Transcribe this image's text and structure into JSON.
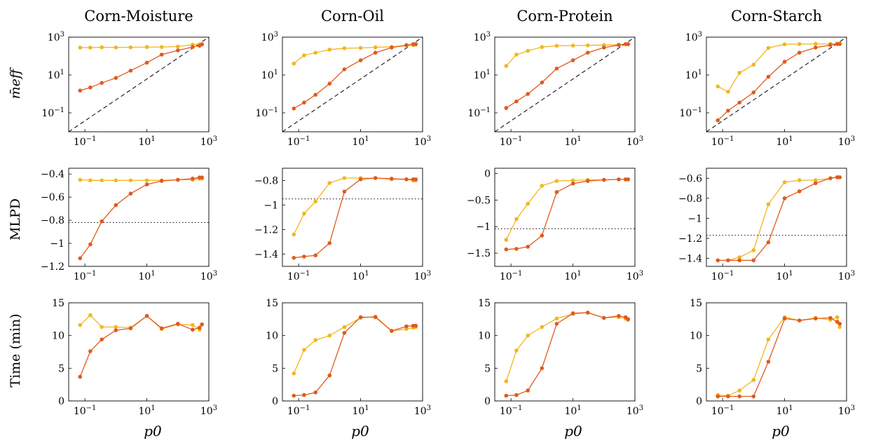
{
  "figure": {
    "columns": [
      "Corn-Moisture",
      "Corn-Oil",
      "Corn-Protein",
      "Corn-Starch"
    ],
    "row_labels": [
      "m̄eff",
      "MLPD",
      "Time (min)"
    ],
    "x_label": "p0"
  },
  "colors": {
    "series_a": "#e05a1e",
    "series_b": "#f2b61f",
    "reference": "#000000"
  },
  "chart_data": [
    {
      "type": "line",
      "panel": "Corn-Moisture / m_eff",
      "xscale": "log",
      "yscale": "log",
      "xlim": [
        0.03,
        1000
      ],
      "ylim": [
        0.01,
        1000
      ],
      "xticks": [
        0.1,
        10,
        1000
      ],
      "yticks": [
        0.1,
        10,
        1000
      ],
      "x": [
        0.07,
        0.15,
        0.35,
        1,
        3,
        10,
        30,
        100,
        300,
        500,
        600
      ],
      "series": [
        {
          "values": [
            1.5,
            2.2,
            3.8,
            7,
            17,
            45,
            120,
            200,
            300,
            350,
            420
          ]
        },
        {
          "values": [
            280,
            280,
            290,
            285,
            290,
            300,
            300,
            320,
            400,
            420,
            420
          ]
        }
      ],
      "reference": {
        "kind": "diagonal"
      }
    },
    {
      "type": "line",
      "panel": "Corn-Oil / m_eff",
      "xscale": "log",
      "yscale": "log",
      "xlim": [
        0.03,
        1000
      ],
      "ylim": [
        0.01,
        1000
      ],
      "xticks": [
        0.1,
        10,
        1000
      ],
      "yticks": [
        0.1,
        10,
        1000
      ],
      "x": [
        0.07,
        0.15,
        0.35,
        1,
        3,
        10,
        30,
        100,
        300,
        500,
        600
      ],
      "series": [
        {
          "values": [
            0.17,
            0.35,
            0.9,
            3.5,
            20,
            60,
            150,
            280,
            380,
            430,
            430
          ]
        },
        {
          "values": [
            40,
            110,
            150,
            220,
            260,
            270,
            290,
            310,
            350,
            380,
            400
          ]
        }
      ],
      "reference": {
        "kind": "diagonal"
      }
    },
    {
      "type": "line",
      "panel": "Corn-Protein / m_eff",
      "xscale": "log",
      "yscale": "log",
      "xlim": [
        0.03,
        1000
      ],
      "ylim": [
        0.01,
        1000
      ],
      "xticks": [
        0.1,
        10,
        1000
      ],
      "yticks": [
        0.1,
        10,
        1000
      ],
      "x": [
        0.07,
        0.15,
        0.35,
        1,
        3,
        10,
        30,
        100,
        300,
        500,
        600
      ],
      "series": [
        {
          "values": [
            0.18,
            0.4,
            1,
            4,
            22,
            60,
            150,
            280,
            380,
            430,
            430
          ]
        },
        {
          "values": [
            30,
            120,
            190,
            300,
            350,
            360,
            370,
            380,
            400,
            420,
            420
          ]
        }
      ],
      "reference": {
        "kind": "diagonal"
      }
    },
    {
      "type": "line",
      "panel": "Corn-Starch / m_eff",
      "xscale": "log",
      "yscale": "log",
      "xlim": [
        0.03,
        1000
      ],
      "ylim": [
        0.01,
        1000
      ],
      "xticks": [
        0.1,
        10,
        1000
      ],
      "yticks": [
        0.1,
        10,
        1000
      ],
      "x": [
        0.07,
        0.15,
        0.35,
        1,
        3,
        10,
        30,
        100,
        300,
        500,
        600
      ],
      "series": [
        {
          "values": [
            0.04,
            0.13,
            0.35,
            1.2,
            8,
            50,
            150,
            280,
            380,
            430,
            430
          ]
        },
        {
          "values": [
            2.5,
            1.3,
            13,
            35,
            270,
            420,
            430,
            440,
            440,
            460,
            460
          ]
        }
      ],
      "reference": {
        "kind": "diagonal"
      }
    },
    {
      "type": "line",
      "panel": "Corn-Moisture / MLPD",
      "xscale": "log",
      "yscale": "linear",
      "xlim": [
        0.03,
        1000
      ],
      "ylim": [
        -1.2,
        -0.35
      ],
      "xticks": [
        0.1,
        10,
        1000
      ],
      "yticks": [
        -1.2,
        -1,
        -0.8,
        -0.6,
        -0.4
      ],
      "x": [
        0.07,
        0.15,
        0.35,
        1,
        3,
        10,
        30,
        100,
        300,
        500,
        600
      ],
      "series": [
        {
          "values": [
            -1.13,
            -1.01,
            -0.81,
            -0.67,
            -0.57,
            -0.49,
            -0.46,
            -0.45,
            -0.44,
            -0.43,
            -0.43
          ]
        },
        {
          "values": [
            -0.45,
            -0.455,
            -0.455,
            -0.455,
            -0.455,
            -0.455,
            -0.455,
            -0.45,
            -0.45,
            -0.44,
            -0.44
          ]
        }
      ],
      "reference": {
        "kind": "hline",
        "value": -0.82
      }
    },
    {
      "type": "line",
      "panel": "Corn-Oil / MLPD",
      "xscale": "log",
      "yscale": "linear",
      "xlim": [
        0.03,
        1000
      ],
      "ylim": [
        -1.5,
        -0.7
      ],
      "xticks": [
        0.1,
        10,
        1000
      ],
      "yticks": [
        -1.4,
        -1.2,
        -1,
        -0.8
      ],
      "x": [
        0.07,
        0.15,
        0.35,
        1,
        3,
        10,
        30,
        100,
        300,
        500,
        600
      ],
      "series": [
        {
          "values": [
            -1.43,
            -1.42,
            -1.41,
            -1.31,
            -0.89,
            -0.79,
            -0.78,
            -0.785,
            -0.79,
            -0.79,
            -0.79
          ]
        },
        {
          "values": [
            -1.24,
            -1.07,
            -0.97,
            -0.82,
            -0.78,
            -0.78,
            -0.78,
            -0.79,
            -0.79,
            -0.8,
            -0.8
          ]
        }
      ],
      "reference": {
        "kind": "hline",
        "value": -0.95
      }
    },
    {
      "type": "line",
      "panel": "Corn-Protein / MLPD",
      "xscale": "log",
      "yscale": "linear",
      "xlim": [
        0.03,
        1000
      ],
      "ylim": [
        -1.75,
        0.1
      ],
      "xticks": [
        0.1,
        10,
        1000
      ],
      "yticks": [
        -1.5,
        -1,
        -0.5,
        0
      ],
      "x": [
        0.07,
        0.15,
        0.35,
        1,
        3,
        10,
        30,
        100,
        300,
        500,
        600
      ],
      "series": [
        {
          "values": [
            -1.43,
            -1.42,
            -1.38,
            -1.17,
            -0.35,
            -0.19,
            -0.14,
            -0.12,
            -0.11,
            -0.11,
            -0.11
          ]
        },
        {
          "values": [
            -1.25,
            -0.86,
            -0.57,
            -0.23,
            -0.14,
            -0.13,
            -0.12,
            -0.12,
            -0.11,
            -0.11,
            -0.11
          ]
        }
      ],
      "reference": {
        "kind": "hline",
        "value": -1.04
      }
    },
    {
      "type": "line",
      "panel": "Corn-Starch / MLPD",
      "xscale": "log",
      "yscale": "linear",
      "xlim": [
        0.03,
        1000
      ],
      "ylim": [
        -1.48,
        -0.5
      ],
      "xticks": [
        0.1,
        10,
        1000
      ],
      "yticks": [
        -1.4,
        -1.2,
        -1,
        -0.8,
        -0.6
      ],
      "x": [
        0.07,
        0.15,
        0.35,
        1,
        3,
        10,
        30,
        100,
        300,
        500,
        600
      ],
      "series": [
        {
          "values": [
            -1.42,
            -1.42,
            -1.42,
            -1.42,
            -1.24,
            -0.8,
            -0.73,
            -0.65,
            -0.6,
            -0.59,
            -0.59
          ]
        },
        {
          "values": [
            -1.42,
            -1.42,
            -1.39,
            -1.32,
            -0.86,
            -0.64,
            -0.62,
            -0.62,
            -0.6,
            -0.59,
            -0.59
          ]
        }
      ],
      "reference": {
        "kind": "hline",
        "value": -1.17
      }
    },
    {
      "type": "line",
      "panel": "Corn-Moisture / Time",
      "xscale": "log",
      "yscale": "linear",
      "xlim": [
        0.03,
        1000
      ],
      "ylim": [
        0,
        15
      ],
      "xticks": [
        0.1,
        10,
        1000
      ],
      "yticks": [
        0,
        5,
        10,
        15
      ],
      "x": [
        0.07,
        0.15,
        0.35,
        1,
        3,
        10,
        30,
        100,
        300,
        500,
        600
      ],
      "series": [
        {
          "values": [
            3.7,
            7.6,
            9.4,
            10.8,
            11.1,
            13.0,
            11.1,
            11.8,
            10.9,
            11.2,
            11.7
          ]
        },
        {
          "values": [
            11.6,
            13.1,
            11.3,
            11.3,
            11.2,
            13.0,
            11.0,
            11.7,
            11.6,
            10.9,
            11.7
          ]
        }
      ]
    },
    {
      "type": "line",
      "panel": "Corn-Oil / Time",
      "xscale": "log",
      "yscale": "linear",
      "xlim": [
        0.03,
        1000
      ],
      "ylim": [
        0,
        15
      ],
      "xticks": [
        0.1,
        10,
        1000
      ],
      "yticks": [
        0,
        5,
        10,
        15
      ],
      "x": [
        0.07,
        0.15,
        0.35,
        1,
        3,
        10,
        30,
        100,
        300,
        500,
        600
      ],
      "series": [
        {
          "values": [
            0.8,
            0.9,
            1.3,
            3.9,
            10.4,
            12.8,
            12.8,
            10.7,
            11.4,
            11.5,
            11.5
          ]
        },
        {
          "values": [
            4.2,
            7.8,
            9.3,
            10.0,
            11.3,
            12.7,
            12.9,
            10.7,
            11.0,
            11.2,
            11.3
          ]
        }
      ]
    },
    {
      "type": "line",
      "panel": "Corn-Protein / Time",
      "xscale": "log",
      "yscale": "linear",
      "xlim": [
        0.03,
        1000
      ],
      "ylim": [
        0,
        15
      ],
      "xticks": [
        0.1,
        10,
        1000
      ],
      "yticks": [
        0,
        5,
        10,
        15
      ],
      "x": [
        0.07,
        0.15,
        0.35,
        1,
        3,
        10,
        30,
        100,
        300,
        500,
        600
      ],
      "series": [
        {
          "values": [
            0.8,
            0.9,
            1.6,
            5.0,
            11.8,
            13.4,
            13.5,
            12.7,
            13.0,
            12.8,
            12.5
          ]
        },
        {
          "values": [
            3.0,
            7.7,
            10.0,
            11.3,
            12.6,
            13.3,
            13.5,
            12.7,
            12.8,
            12.6,
            12.4
          ]
        }
      ]
    },
    {
      "type": "line",
      "panel": "Corn-Starch / Time",
      "xscale": "log",
      "yscale": "linear",
      "xlim": [
        0.03,
        1000
      ],
      "ylim": [
        0,
        15
      ],
      "xticks": [
        0.1,
        10,
        1000
      ],
      "yticks": [
        0,
        5,
        10,
        15
      ],
      "x": [
        0.07,
        0.15,
        0.35,
        1,
        3,
        10,
        30,
        100,
        300,
        500,
        600
      ],
      "series": [
        {
          "values": [
            0.7,
            0.7,
            0.7,
            0.7,
            6.0,
            12.6,
            12.3,
            12.6,
            12.7,
            12.1,
            11.8
          ]
        },
        {
          "values": [
            0.9,
            0.8,
            1.6,
            3.2,
            9.4,
            12.8,
            12.3,
            12.7,
            12.4,
            12.8,
            11.3
          ]
        }
      ]
    }
  ]
}
